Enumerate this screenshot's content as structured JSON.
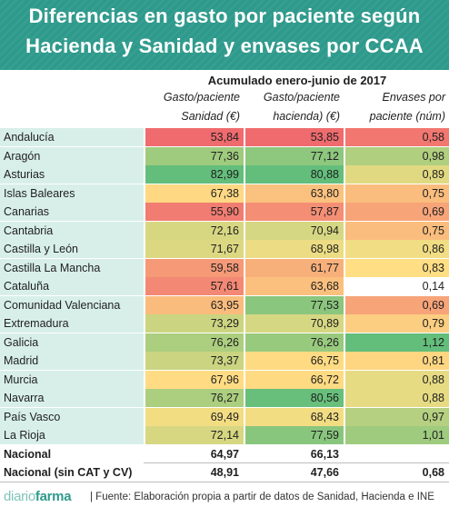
{
  "header": {
    "line1": "Diferencias en gasto por paciente según",
    "line2": "Hacienda y Sanidad y envases por CCAA"
  },
  "period": "Acumulado enero-junio de 2017",
  "columns": {
    "c1": [
      "Gasto/paciente",
      "Sanidad (€)"
    ],
    "c2": [
      "Gasto/paciente",
      "hacienda) (€)"
    ],
    "c3": [
      "Envases por",
      "paciente (núm)"
    ]
  },
  "colors": {
    "header_bg": "#2e9a8c",
    "name_bg": "#d8efe9",
    "low": "#ef6b6e",
    "mid": "#ffe084",
    "high": "#63be7b"
  },
  "rows": [
    {
      "name": "Andalucía",
      "sanidad": "53,84",
      "hacienda": "53,85",
      "envases": "0,58"
    },
    {
      "name": "Aragón",
      "sanidad": "77,36",
      "hacienda": "77,12",
      "envases": "0,98"
    },
    {
      "name": "Asturias",
      "sanidad": "82,99",
      "hacienda": "80,88",
      "envases": "0,89"
    },
    {
      "name": "Islas Baleares",
      "sanidad": "67,38",
      "hacienda": "63,80",
      "envases": "0,75"
    },
    {
      "name": "Canarias",
      "sanidad": "55,90",
      "hacienda": "57,87",
      "envases": "0,69"
    },
    {
      "name": "Cantabria",
      "sanidad": "72,16",
      "hacienda": "70,94",
      "envases": "0,75"
    },
    {
      "name": "Castilla y León",
      "sanidad": "71,67",
      "hacienda": "68,98",
      "envases": "0,86"
    },
    {
      "name": "Castilla La Mancha",
      "sanidad": "59,58",
      "hacienda": "61,77",
      "envases": "0,83"
    },
    {
      "name": "Cataluña",
      "sanidad": "57,61",
      "hacienda": "63,68",
      "envases": "0,14"
    },
    {
      "name": "Comunidad Valenciana",
      "sanidad": "63,95",
      "hacienda": "77,53",
      "envases": "0,69"
    },
    {
      "name": "Extremadura",
      "sanidad": "73,29",
      "hacienda": "70,89",
      "envases": "0,79"
    },
    {
      "name": "Galicia",
      "sanidad": "76,26",
      "hacienda": "76,26",
      "envases": "1,12"
    },
    {
      "name": "Madrid",
      "sanidad": "73,37",
      "hacienda": "66,75",
      "envases": "0,81"
    },
    {
      "name": "Murcia",
      "sanidad": "67,96",
      "hacienda": "66,72",
      "envases": "0,88"
    },
    {
      "name": "Navarra",
      "sanidad": "76,27",
      "hacienda": "80,56",
      "envases": "0,88"
    },
    {
      "name": "País Vasco",
      "sanidad": "69,49",
      "hacienda": "68,43",
      "envases": "0,97"
    },
    {
      "name": "La Rioja",
      "sanidad": "72,14",
      "hacienda": "77,59",
      "envases": "1,01"
    }
  ],
  "totals": [
    {
      "name": "Nacional",
      "sanidad": "64,97",
      "hacienda": "66,13",
      "envases": ""
    },
    {
      "name": "Nacional (sin CAT y CV)",
      "sanidad": "48,91",
      "hacienda": "47,66",
      "envases": "0,68"
    }
  ],
  "footer": {
    "logo_a": "diario",
    "logo_b": "farma",
    "source": "| Fuente:  Elaboración propia a partir de datos de Sanidad, Hacienda e INE"
  },
  "chart_data": {
    "type": "table",
    "title": "Diferencias en gasto por paciente según Hacienda y Sanidad y envases por CCAA",
    "subtitle": "Acumulado enero-junio de 2017",
    "columns": [
      "Gasto/paciente Sanidad (€)",
      "Gasto/paciente hacienda) (€)",
      "Envases por paciente (núm)"
    ],
    "categories": [
      "Andalucía",
      "Aragón",
      "Asturias",
      "Islas Baleares",
      "Canarias",
      "Cantabria",
      "Castilla y León",
      "Castilla La Mancha",
      "Cataluña",
      "Comunidad Valenciana",
      "Extremadura",
      "Galicia",
      "Madrid",
      "Murcia",
      "Navarra",
      "País Vasco",
      "La Rioja",
      "Nacional",
      "Nacional (sin CAT y CV)"
    ],
    "series": [
      {
        "name": "Gasto/paciente Sanidad (€)",
        "values": [
          53.84,
          77.36,
          82.99,
          67.38,
          55.9,
          72.16,
          71.67,
          59.58,
          57.61,
          63.95,
          73.29,
          76.26,
          73.37,
          67.96,
          76.27,
          69.49,
          72.14,
          64.97,
          48.91
        ]
      },
      {
        "name": "Gasto/paciente hacienda) (€)",
        "values": [
          53.85,
          77.12,
          80.88,
          63.8,
          57.87,
          70.94,
          68.98,
          61.77,
          63.68,
          77.53,
          70.89,
          76.26,
          66.75,
          66.72,
          80.56,
          68.43,
          77.59,
          66.13,
          47.66
        ]
      },
      {
        "name": "Envases por paciente (núm)",
        "values": [
          0.58,
          0.98,
          0.89,
          0.75,
          0.69,
          0.75,
          0.86,
          0.83,
          0.14,
          0.69,
          0.79,
          1.12,
          0.81,
          0.88,
          0.88,
          0.97,
          1.01,
          null,
          0.68
        ]
      }
    ]
  }
}
